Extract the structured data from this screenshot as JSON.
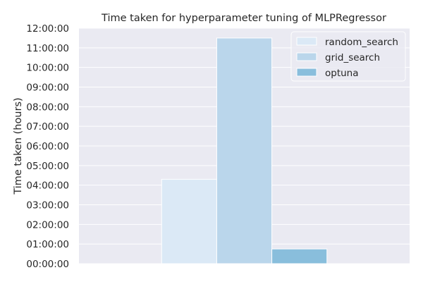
{
  "chart_data": {
    "type": "bar",
    "title": "Time taken for hyperparameter tuning of MLPRegressor",
    "xlabel": "",
    "ylabel": "Time taken (hours)",
    "categories": [
      ""
    ],
    "series": [
      {
        "name": "random_search",
        "values": [
          4.3
        ],
        "color": "#dbe9f6"
      },
      {
        "name": "grid_search",
        "values": [
          11.5
        ],
        "color": "#bad6eb"
      },
      {
        "name": "optuna",
        "values": [
          0.75
        ],
        "color": "#89bedc"
      }
    ],
    "ylim": [
      0,
      12
    ],
    "yticks": [
      0,
      1,
      2,
      3,
      4,
      5,
      6,
      7,
      8,
      9,
      10,
      11,
      12
    ],
    "yticklabels": [
      "00:00:00",
      "01:00:00",
      "02:00:00",
      "03:00:00",
      "04:00:00",
      "05:00:00",
      "06:00:00",
      "07:00:00",
      "08:00:00",
      "09:00:00",
      "10:00:00",
      "11:00:00",
      "12:00:00"
    ],
    "grid": true,
    "legend_position": "top-right",
    "colors": {
      "background": "#eaeaf2",
      "grid": "#ffffff",
      "text": "#262626"
    }
  }
}
